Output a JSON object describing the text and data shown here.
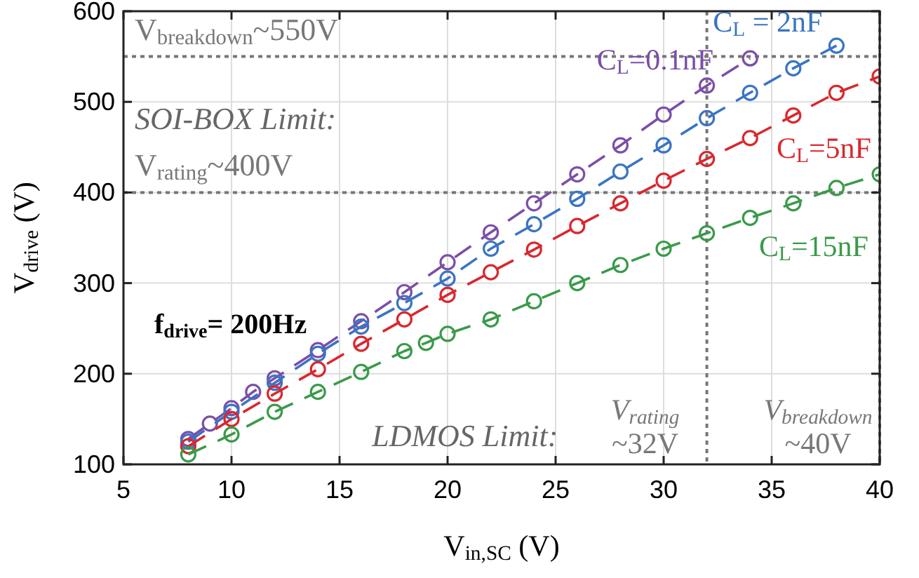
{
  "chart_data": {
    "type": "line",
    "xlabel": "V$_{in,SC}$ (V)",
    "ylabel": "V$_{drive}$ (V)",
    "xlim": [
      5,
      40
    ],
    "ylim": [
      100,
      600
    ],
    "xticks": [
      5,
      10,
      15,
      20,
      25,
      30,
      35,
      40
    ],
    "yticks": [
      100,
      200,
      300,
      400,
      500,
      600
    ],
    "grid": true,
    "marker": "circle",
    "line_style": "dashed",
    "series": [
      {
        "name": "C$_{L}$=0.1nF",
        "color": "#7b4fa8",
        "x": [
          8,
          9,
          10,
          11,
          12,
          14,
          16,
          18,
          20,
          22,
          24,
          26,
          28,
          30,
          32,
          34
        ],
        "values": [
          128,
          145,
          162,
          180,
          195,
          226,
          258,
          290,
          323,
          356,
          388,
          420,
          452,
          486,
          518,
          548
        ]
      },
      {
        "name": "C$_{L}$ = 2nF",
        "color": "#3a74c4",
        "x": [
          8,
          10,
          12,
          14,
          16,
          18,
          20,
          22,
          24,
          26,
          28,
          30,
          32,
          34,
          36,
          38
        ],
        "values": [
          125,
          158,
          190,
          222,
          252,
          278,
          305,
          338,
          365,
          393,
          423,
          452,
          482,
          510,
          537,
          562
        ]
      },
      {
        "name": "C$_{L}$=5nF",
        "color": "#d8282e",
        "x": [
          8,
          10,
          12,
          14,
          16,
          18,
          20,
          22,
          24,
          26,
          28,
          30,
          32,
          34,
          36,
          38,
          40
        ],
        "values": [
          120,
          150,
          178,
          205,
          233,
          260,
          287,
          312,
          337,
          363,
          388,
          413,
          437,
          460,
          485,
          510,
          528
        ]
      },
      {
        "name": "C$_{L}$=15nF",
        "color": "#3a9a4a",
        "x": [
          8,
          10,
          12,
          14,
          16,
          18,
          19,
          20,
          22,
          24,
          26,
          28,
          30,
          32,
          34,
          36,
          38,
          40
        ],
        "values": [
          111,
          133,
          158,
          180,
          202,
          225,
          234,
          244,
          260,
          280,
          300,
          320,
          338,
          355,
          372,
          388,
          405,
          420
        ]
      }
    ],
    "ref_lines": [
      {
        "axis": "y",
        "value": 550,
        "label": "V$_{breakdown}$~550V",
        "color": "#777777",
        "line_style": "dotted"
      },
      {
        "axis": "y",
        "value": 400,
        "label": "V$_{rating}$~400V",
        "color": "#777777",
        "line_style": "dotted"
      },
      {
        "axis": "x",
        "value": 32,
        "label": "V$_{rating}$\n~32V",
        "color": "#777777",
        "line_style": "dotted"
      },
      {
        "axis": "x",
        "value": 40,
        "label": "V$_{breakdown}$\n~40V",
        "color": "#777777",
        "line_style": "dotted"
      }
    ],
    "annotations": [
      "SOI-BOX Limit:",
      "f$_{drive}$= 200Hz",
      "LDMOS Limit:"
    ]
  }
}
